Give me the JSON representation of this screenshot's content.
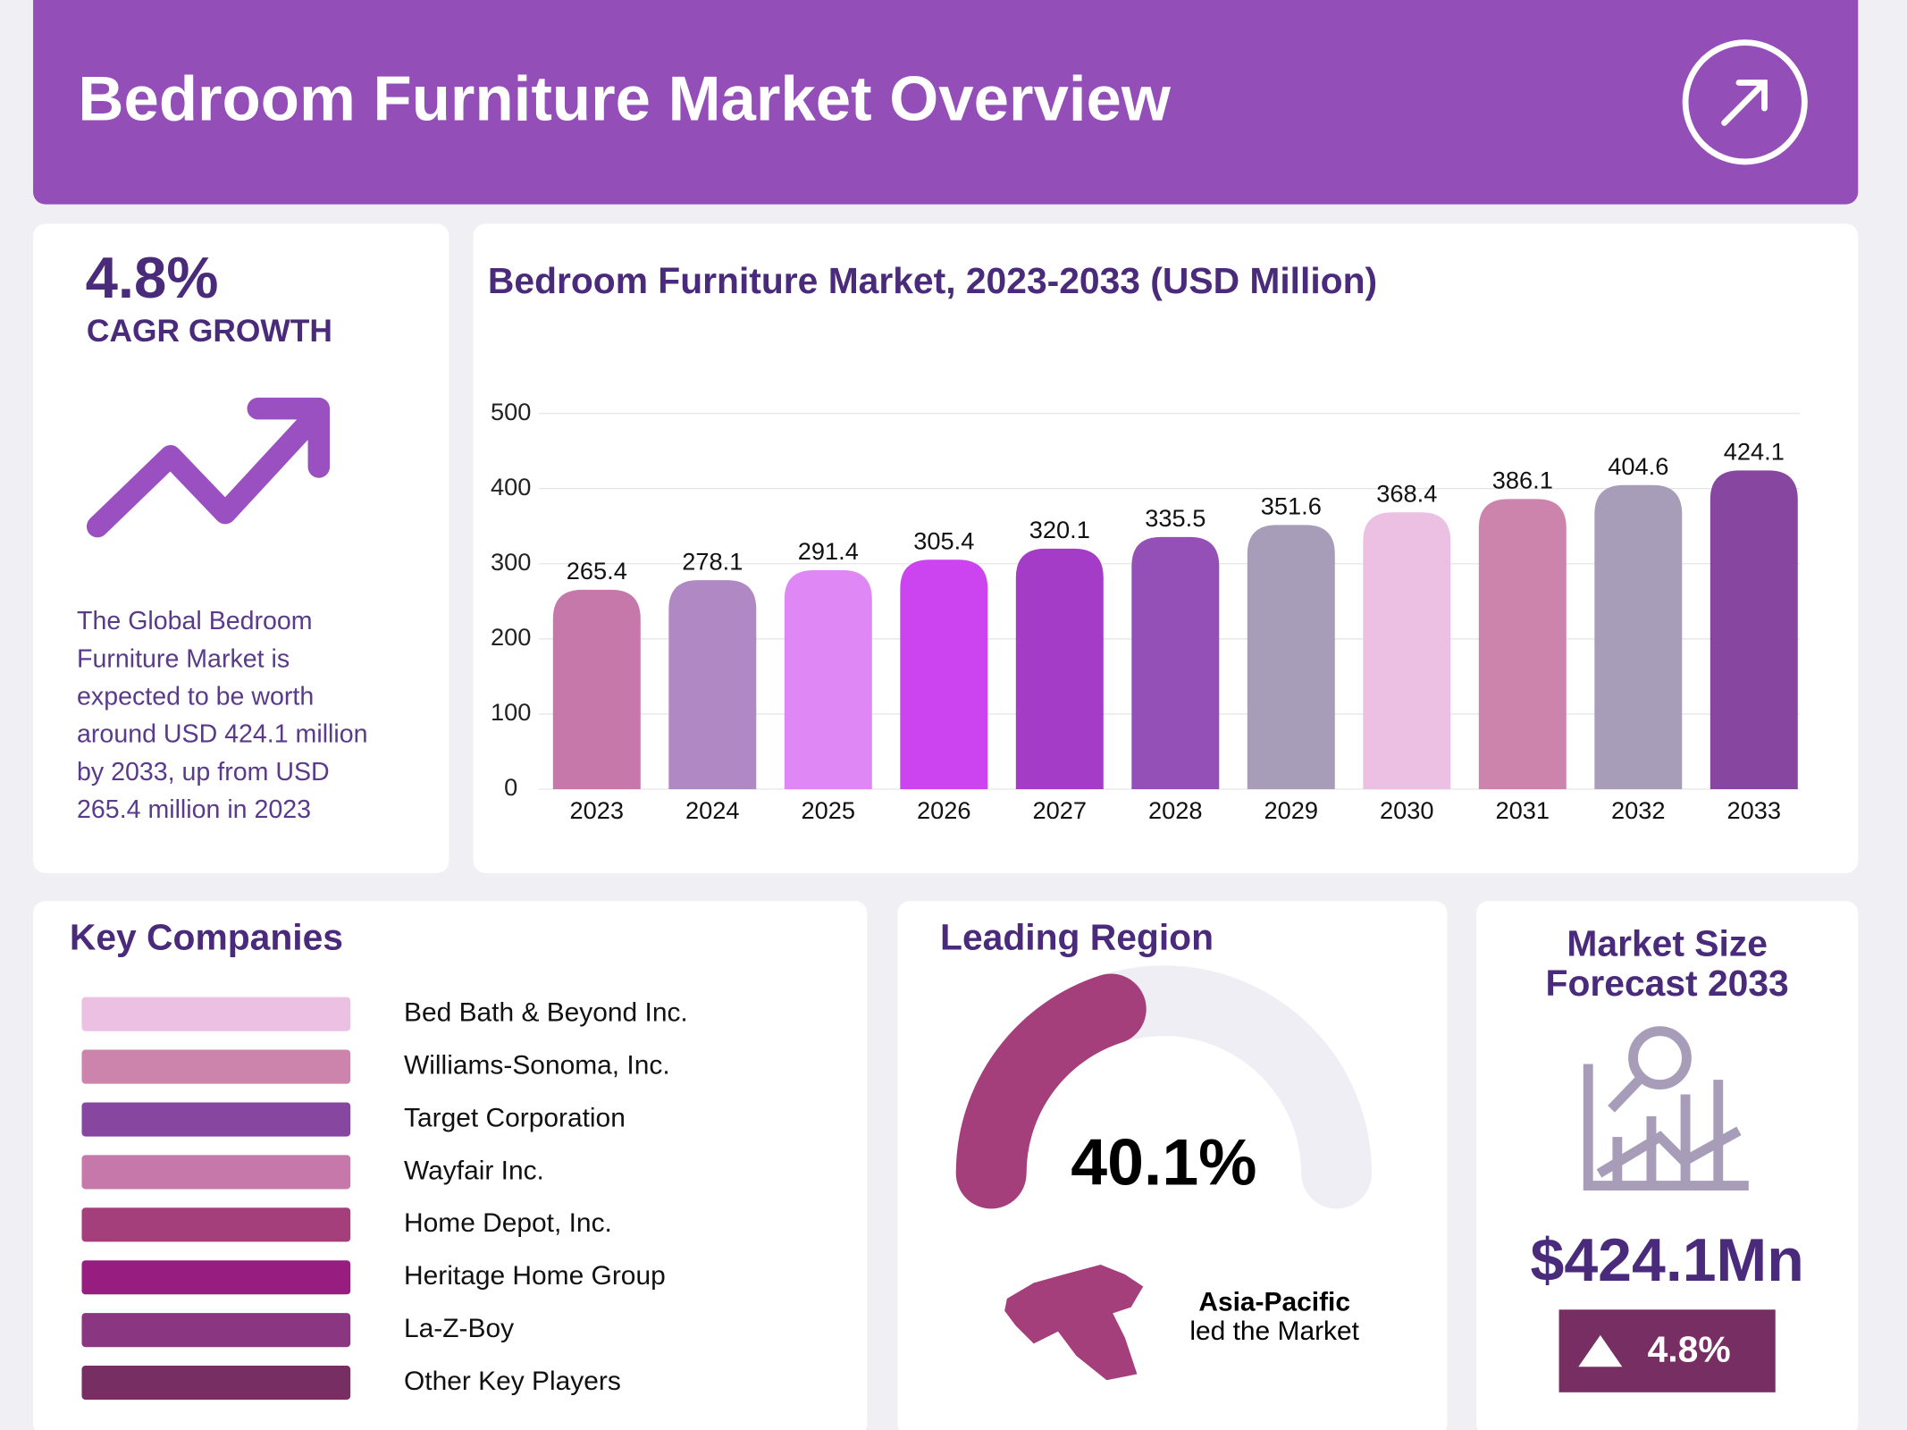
{
  "header": {
    "title": "Bedroom Furniture Market Overview"
  },
  "cagr": {
    "value": {
      "value": 4.8,
      "label": "4.8%"
    },
    "label": "CAGR GROWTH",
    "description": [
      "The Global Bedroom",
      "Furniture Market is",
      "expected to be worth",
      "around USD 424.1 million",
      "by 2033, up from USD",
      "265.4 million in 2023"
    ]
  },
  "chart_data": {
    "type": "bar",
    "title": "Bedroom Furniture Market, 2023-2033 (USD Million)",
    "categories": [
      "2023",
      "2024",
      "2025",
      "2026",
      "2027",
      "2028",
      "2029",
      "2030",
      "2031",
      "2032",
      "2033"
    ],
    "values": [
      265.4,
      278.1,
      291.4,
      305.4,
      320.1,
      335.5,
      351.6,
      368.4,
      386.1,
      404.6,
      424.1
    ],
    "colors": [
      "#c678ab",
      "#b088c4",
      "#df88f5",
      "#cc44f0",
      "#a43cc8",
      "#9550b8",
      "#a89db8",
      "#ecc0e3",
      "#cc84ad",
      "#a89db8",
      "#8746a0"
    ],
    "ylim": [
      0,
      500
    ],
    "yticks": [
      0,
      100,
      200,
      300,
      400,
      500
    ],
    "grid": true
  },
  "companies": {
    "title": "Key Companies",
    "items": [
      {
        "name": "Bed Bath & Beyond Inc.",
        "color": "#ecc0e3"
      },
      {
        "name": "Williams-Sonoma, Inc.",
        "color": "#cc84ad"
      },
      {
        "name": "Target Corporation",
        "color": "#8746a0"
      },
      {
        "name": "Wayfair Inc.",
        "color": "#c678ab"
      },
      {
        "name": "Home Depot, Inc.",
        "color": "#a53f7c"
      },
      {
        "name": "Heritage Home Group",
        "color": "#971e80"
      },
      {
        "name": "La-Z-Boy",
        "color": "#8a3680"
      },
      {
        "name": "Other Key Players",
        "color": "#772f63"
      }
    ]
  },
  "region": {
    "title": "Leading Region",
    "share": {
      "value": 40.1,
      "label": "40.1%"
    },
    "color": "#a53f7c",
    "name": "Asia-Pacific",
    "note": "led the Market"
  },
  "forecast": {
    "title_lines": [
      "Market Size",
      "Forecast 2033"
    ],
    "value": {
      "value": 424.1,
      "label": "$424.1Mn"
    },
    "growth": {
      "value": 4.8,
      "label": "4.8%"
    }
  }
}
